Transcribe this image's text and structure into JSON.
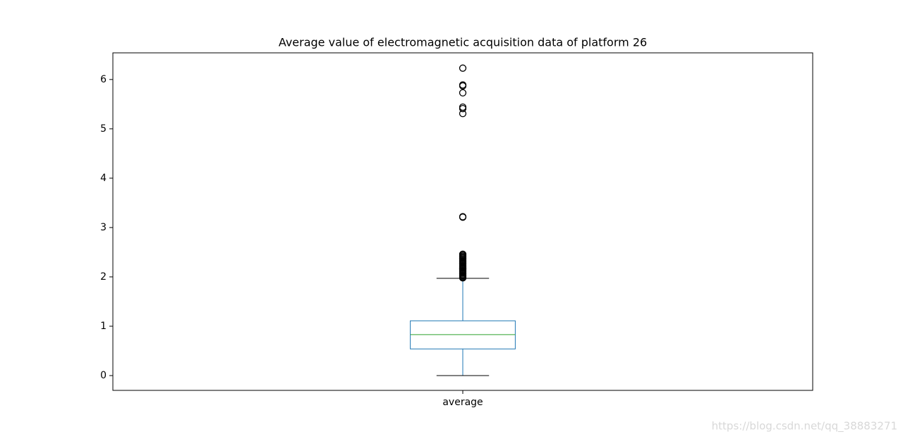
{
  "chart_data": {
    "type": "box",
    "title": "Average value of electromagnetic acquisition data of platform 26",
    "categories": [
      "average"
    ],
    "boxes": [
      {
        "whislo": 0,
        "q1": 0.54,
        "med": 0.83,
        "q3": 1.11,
        "whishi": 1.97,
        "fliers": [
          1.98,
          2.0,
          2.02,
          2.04,
          2.06,
          2.08,
          2.1,
          2.12,
          2.14,
          2.16,
          2.18,
          2.2,
          2.22,
          2.24,
          2.26,
          2.28,
          2.3,
          2.32,
          2.34,
          2.36,
          2.38,
          2.4,
          2.42,
          2.44,
          2.46,
          3.21,
          3.22,
          5.31,
          5.41,
          5.44,
          5.73,
          5.87,
          5.89,
          6.23
        ]
      }
    ],
    "box_color": "#1f77b4",
    "median_color": "#2ca02c",
    "cap_color": "#000000",
    "flier_color": "#000000",
    "ylim": [
      -0.3,
      6.54
    ],
    "yticks": [
      0,
      1,
      2,
      3,
      4,
      5,
      6
    ],
    "grid": false
  },
  "watermark": "https://blog.csdn.net/qq_38883271"
}
